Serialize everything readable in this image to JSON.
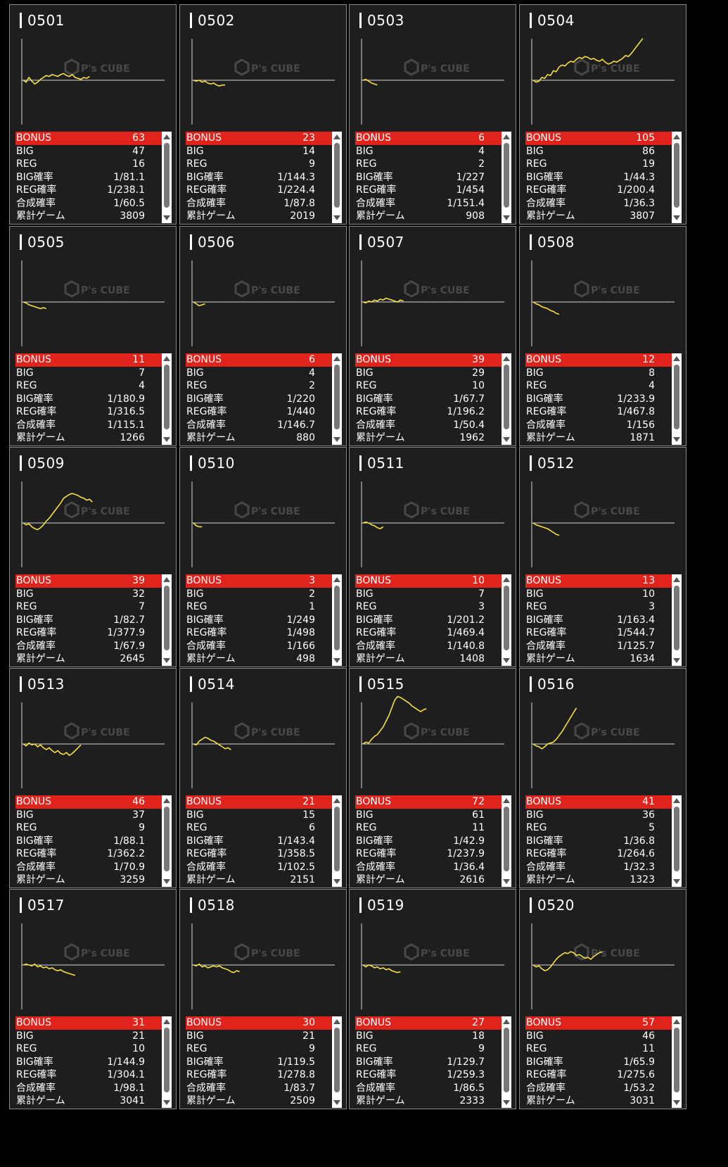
{
  "labels": {
    "bonus": "BONUS",
    "big": "BIG",
    "reg": "REG",
    "big_rate": "BIG確率",
    "reg_rate": "REG確率",
    "combined_rate": "合成確率",
    "total_games": "累計ゲーム"
  },
  "watermark": {
    "brand": "P's CUBE"
  },
  "colors": {
    "bonus_bg": "#e0231c",
    "graph_line": "#f5e040",
    "card_bg": "#1e1e1e"
  },
  "machines": [
    {
      "id": "0501",
      "bonus": "63",
      "big": "47",
      "reg": "16",
      "big_rate": "1/81.1",
      "reg_rate": "1/238.1",
      "combined": "1/60.5",
      "games": "3809",
      "graph": [
        0,
        -2,
        3,
        -1,
        -4,
        -2,
        1,
        3,
        5,
        4,
        6,
        5,
        4,
        6,
        7,
        5,
        4,
        6,
        3,
        2,
        1,
        3,
        2,
        4
      ]
    },
    {
      "id": "0502",
      "bonus": "23",
      "big": "14",
      "reg": "9",
      "big_rate": "1/144.3",
      "reg_rate": "1/224.4",
      "combined": "1/87.8",
      "games": "2019",
      "graph": [
        0,
        -1,
        0,
        -2,
        -1,
        -3,
        -4,
        -3,
        -5,
        -6,
        -5,
        -5
      ]
    },
    {
      "id": "0503",
      "bonus": "6",
      "big": "4",
      "reg": "2",
      "big_rate": "1/227",
      "reg_rate": "1/454",
      "combined": "1/151.4",
      "games": "908",
      "graph": [
        0,
        1,
        -1,
        -3,
        -4,
        -5
      ]
    },
    {
      "id": "0504",
      "bonus": "105",
      "big": "86",
      "reg": "19",
      "big_rate": "1/44.3",
      "reg_rate": "1/200.4",
      "combined": "1/36.3",
      "games": "3807",
      "graph": [
        0,
        -2,
        -1,
        3,
        2,
        6,
        5,
        10,
        9,
        14,
        16,
        15,
        18,
        20,
        19,
        22,
        24,
        23,
        25,
        24,
        22,
        23,
        21,
        20,
        22,
        19,
        17,
        18,
        20,
        19,
        21,
        23,
        26,
        25,
        28,
        32,
        36,
        40,
        44
      ]
    },
    {
      "id": "0505",
      "bonus": "11",
      "big": "7",
      "reg": "4",
      "big_rate": "1/180.9",
      "reg_rate": "1/316.5",
      "combined": "1/115.1",
      "games": "1266",
      "graph": [
        0,
        -1,
        -3,
        -4,
        -5,
        -6,
        -7,
        -6,
        -7
      ]
    },
    {
      "id": "0506",
      "bonus": "6",
      "big": "4",
      "reg": "2",
      "big_rate": "1/220",
      "reg_rate": "1/440",
      "combined": "1/146.7",
      "games": "880",
      "graph": [
        0,
        -2,
        -4,
        -3,
        -2
      ]
    },
    {
      "id": "0507",
      "bonus": "39",
      "big": "29",
      "reg": "10",
      "big_rate": "1/67.7",
      "reg_rate": "1/196.2",
      "combined": "1/50.4",
      "games": "1962",
      "graph": [
        0,
        -1,
        1,
        0,
        2,
        1,
        3,
        2,
        4,
        3,
        2,
        1,
        0,
        2,
        1
      ]
    },
    {
      "id": "0508",
      "bonus": "12",
      "big": "8",
      "reg": "4",
      "big_rate": "1/233.9",
      "reg_rate": "1/467.8",
      "combined": "1/156",
      "games": "1871",
      "graph": [
        0,
        -2,
        -3,
        -5,
        -6,
        -7,
        -9,
        -10,
        -12,
        -13
      ]
    },
    {
      "id": "0509",
      "bonus": "39",
      "big": "32",
      "reg": "7",
      "big_rate": "1/82.7",
      "reg_rate": "1/377.9",
      "combined": "1/67.9",
      "games": "2645",
      "graph": [
        0,
        -2,
        -1,
        -4,
        -6,
        -7,
        -5,
        -2,
        2,
        5,
        9,
        13,
        17,
        21,
        26,
        28,
        30,
        31,
        30,
        29,
        27,
        26,
        24,
        25,
        22
      ]
    },
    {
      "id": "0510",
      "bonus": "3",
      "big": "2",
      "reg": "1",
      "big_rate": "1/249",
      "reg_rate": "1/498",
      "combined": "1/166",
      "games": "498",
      "graph": [
        0,
        -3,
        -4,
        -4
      ]
    },
    {
      "id": "0511",
      "bonus": "10",
      "big": "7",
      "reg": "3",
      "big_rate": "1/201.2",
      "reg_rate": "1/469.4",
      "combined": "1/140.8",
      "games": "1408",
      "graph": [
        0,
        1,
        0,
        -2,
        -3,
        -5,
        -6,
        -4
      ]
    },
    {
      "id": "0512",
      "bonus": "13",
      "big": "10",
      "reg": "3",
      "big_rate": "1/163.4",
      "reg_rate": "1/544.7",
      "combined": "1/125.7",
      "games": "1634",
      "graph": [
        0,
        -2,
        -3,
        -4,
        -5,
        -6,
        -8,
        -10,
        -12,
        -13
      ]
    },
    {
      "id": "0513",
      "bonus": "46",
      "big": "37",
      "reg": "9",
      "big_rate": "1/88.1",
      "reg_rate": "1/362.2",
      "combined": "1/70.9",
      "games": "3259",
      "graph": [
        0,
        -2,
        1,
        -1,
        0,
        -3,
        -1,
        -4,
        -6,
        -4,
        -7,
        -9,
        -7,
        -10,
        -11,
        -9,
        -12,
        -10,
        -7,
        -4,
        -1
      ]
    },
    {
      "id": "0514",
      "bonus": "21",
      "big": "15",
      "reg": "6",
      "big_rate": "1/143.4",
      "reg_rate": "1/358.5",
      "combined": "1/102.5",
      "games": "2151",
      "graph": [
        0,
        -1,
        3,
        5,
        7,
        6,
        4,
        3,
        1,
        -1,
        -3,
        -5,
        -4,
        -6
      ]
    },
    {
      "id": "0515",
      "bonus": "72",
      "big": "61",
      "reg": "11",
      "big_rate": "1/42.9",
      "reg_rate": "1/237.9",
      "combined": "1/36.4",
      "games": "2616",
      "graph": [
        0,
        2,
        1,
        5,
        8,
        10,
        14,
        18,
        24,
        30,
        38,
        46,
        50,
        49,
        47,
        45,
        43,
        40,
        38,
        36,
        34,
        36,
        37
      ]
    },
    {
      "id": "0516",
      "bonus": "41",
      "big": "36",
      "reg": "5",
      "big_rate": "1/36.8",
      "reg_rate": "1/264.6",
      "combined": "1/32.3",
      "games": "1323",
      "graph": [
        0,
        -2,
        -3,
        -5,
        -3,
        0,
        1,
        2,
        5,
        9,
        13,
        18,
        23,
        28,
        33,
        38
      ]
    },
    {
      "id": "0517",
      "bonus": "31",
      "big": "21",
      "reg": "10",
      "big_rate": "1/144.9",
      "reg_rate": "1/304.1",
      "combined": "1/98.1",
      "games": "3041",
      "graph": [
        0,
        1,
        0,
        -1,
        1,
        -2,
        -1,
        -3,
        -2,
        -4,
        -3,
        -5,
        -6,
        -5,
        -7,
        -8,
        -9,
        -10,
        -11
      ]
    },
    {
      "id": "0518",
      "bonus": "30",
      "big": "21",
      "reg": "9",
      "big_rate": "1/119.5",
      "reg_rate": "1/278.8",
      "combined": "1/83.7",
      "games": "2509",
      "graph": [
        0,
        -1,
        1,
        -2,
        -1,
        -3,
        -2,
        -1,
        -2,
        -1,
        -3,
        -4,
        -5,
        -7,
        -8,
        -6,
        -7
      ]
    },
    {
      "id": "0519",
      "bonus": "27",
      "big": "18",
      "reg": "9",
      "big_rate": "1/129.7",
      "reg_rate": "1/259.3",
      "combined": "1/86.5",
      "games": "2333",
      "graph": [
        0,
        -2,
        0,
        -1,
        -3,
        -2,
        -4,
        -3,
        -5,
        -4,
        -6,
        -7,
        -8,
        -7
      ]
    },
    {
      "id": "0520",
      "bonus": "57",
      "big": "46",
      "reg": "11",
      "big_rate": "1/65.9",
      "reg_rate": "1/275.6",
      "combined": "1/53.2",
      "games": "3031",
      "graph": [
        0,
        -2,
        -1,
        -4,
        -6,
        -5,
        -2,
        2,
        6,
        9,
        11,
        13,
        12,
        14,
        13,
        10,
        11,
        9,
        7,
        8,
        6,
        9,
        11,
        13,
        14
      ]
    }
  ]
}
